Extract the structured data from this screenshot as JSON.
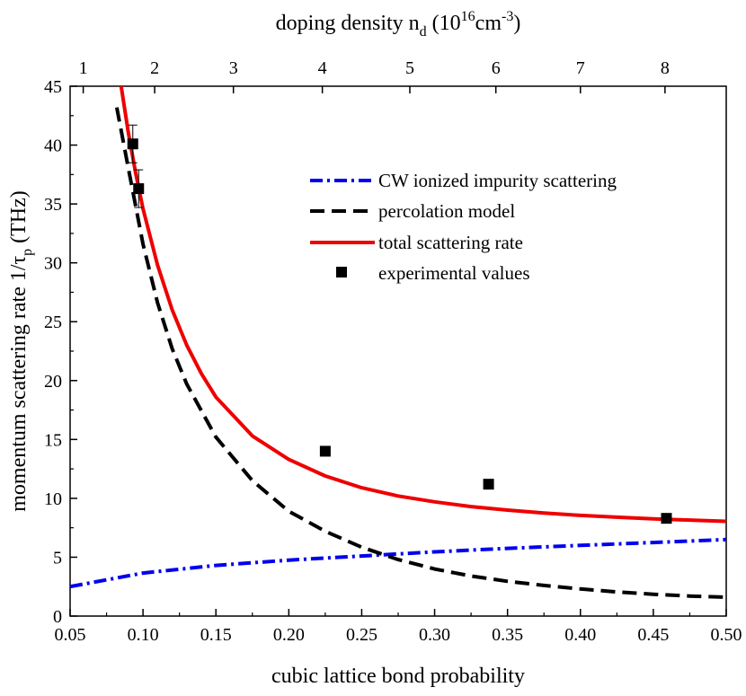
{
  "chart_data": {
    "type": "line",
    "xlabel": "cubic lattice bond probability",
    "ylabel_main": "momentum scattering rate 1/τ",
    "ylabel_sub": "p",
    "ylabel_unit": " (THz)",
    "x2label_main": "doping density n",
    "x2label_sub": "d",
    "x2label_unit_open": " (10",
    "x2label_sup1": "16",
    "x2label_mid": "cm",
    "x2label_sup2": "-3",
    "x2label_close": ")",
    "xlim": [
      0.05,
      0.5
    ],
    "ylim": [
      0,
      45
    ],
    "xticks": [
      "0.05",
      "0.10",
      "0.15",
      "0.20",
      "0.25",
      "0.30",
      "0.35",
      "0.40",
      "0.45",
      "0.50"
    ],
    "yticks": [
      "0",
      "5",
      "10",
      "15",
      "20",
      "25",
      "30",
      "35",
      "40",
      "45"
    ],
    "top_ticks": [
      {
        "label": "1",
        "x": 0.059
      },
      {
        "label": "2",
        "x": 0.108
      },
      {
        "label": "3",
        "x": 0.162
      },
      {
        "label": "4",
        "x": 0.223
      },
      {
        "label": "5",
        "x": 0.283
      },
      {
        "label": "6",
        "x": 0.342
      },
      {
        "label": "7",
        "x": 0.4
      },
      {
        "label": "8",
        "x": 0.458
      }
    ],
    "series": [
      {
        "name": "CW ionized impurity scattering",
        "color": "#0000ee",
        "style": "dashdot",
        "x": [
          0.05,
          0.1,
          0.15,
          0.2,
          0.25,
          0.3,
          0.35,
          0.4,
          0.45,
          0.5
        ],
        "y": [
          2.5,
          3.65,
          4.3,
          4.75,
          5.1,
          5.45,
          5.75,
          6.0,
          6.25,
          6.5
        ]
      },
      {
        "name": "percolation model",
        "color": "#000000",
        "style": "dashed",
        "x": [
          0.082,
          0.09,
          0.1,
          0.11,
          0.12,
          0.13,
          0.15,
          0.175,
          0.2,
          0.225,
          0.25,
          0.275,
          0.3,
          0.325,
          0.35,
          0.375,
          0.4,
          0.425,
          0.45,
          0.475,
          0.5
        ],
        "y": [
          43.2,
          38.0,
          31.6,
          26.6,
          22.7,
          19.7,
          15.2,
          11.5,
          8.9,
          7.2,
          5.85,
          4.8,
          4.0,
          3.4,
          2.95,
          2.6,
          2.3,
          2.05,
          1.85,
          1.7,
          1.6
        ]
      },
      {
        "name": "total scattering rate",
        "color": "#ee0000",
        "style": "solid",
        "x": [
          0.085,
          0.09,
          0.095,
          0.1,
          0.11,
          0.12,
          0.13,
          0.14,
          0.15,
          0.175,
          0.2,
          0.225,
          0.25,
          0.275,
          0.3,
          0.325,
          0.35,
          0.375,
          0.4,
          0.425,
          0.45,
          0.475,
          0.5
        ],
        "y": [
          45.0,
          41.0,
          37.6,
          34.6,
          29.8,
          26.0,
          23.0,
          20.6,
          18.6,
          15.3,
          13.3,
          11.9,
          10.9,
          10.2,
          9.7,
          9.3,
          9.0,
          8.75,
          8.55,
          8.4,
          8.25,
          8.15,
          8.05
        ]
      },
      {
        "name": "experimental values",
        "color": "#000000",
        "style": "marker",
        "x": [
          0.093,
          0.097,
          0.225,
          0.337,
          0.459
        ],
        "y": [
          40.1,
          36.3,
          14.0,
          11.2,
          8.3
        ],
        "err": [
          1.6,
          1.6,
          0,
          0,
          0
        ]
      }
    ]
  }
}
